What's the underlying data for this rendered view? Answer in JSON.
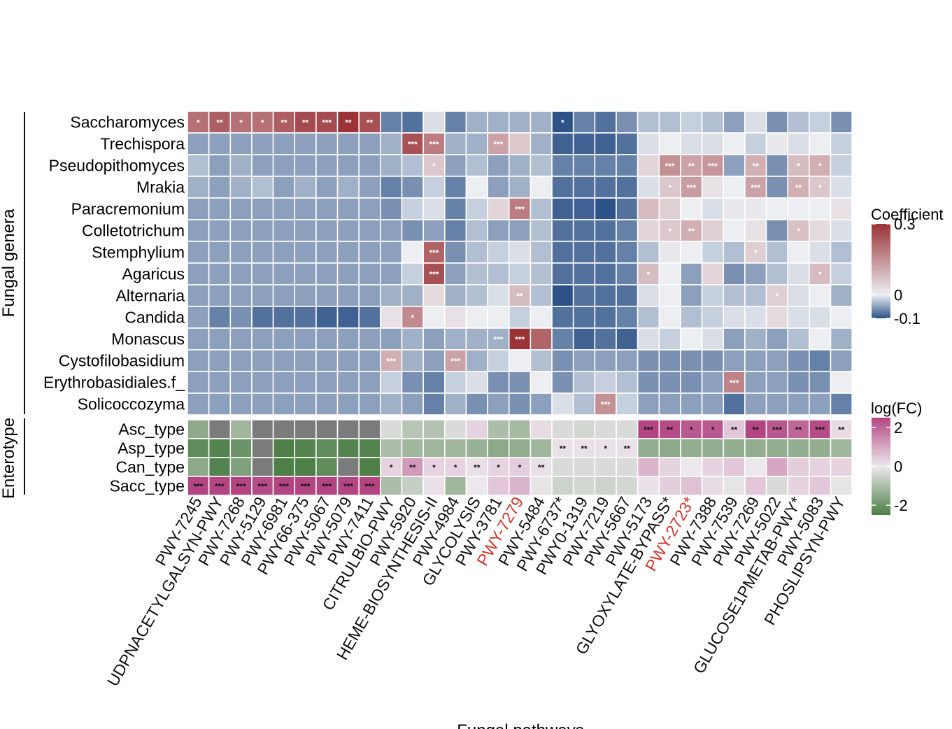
{
  "chart_data": {
    "type": "heatmap",
    "y_axis_label_top": "Fungal genera",
    "y_axis_label_bottom": "Enterotype",
    "x_axis_label": "Fungal pathways",
    "columns": [
      "PWY-7245",
      "UDPNACETYLGALSYN-PWY",
      "PWY-7268",
      "PWY-5129",
      "PWY-6981",
      "PWY66-375",
      "PWY-5067",
      "PWY-5079",
      "PWY-7411",
      "CITRULBIO-PWY",
      "PWY-5920",
      "HEME-BIOSYNTHESIS-II",
      "PWY-4984",
      "GLYCOLYSIS",
      "PWY-3781",
      "PWY-7279",
      "PWY-5484",
      "PWY-6737*",
      "PWY0-1319",
      "PWY-7219",
      "PWY-5667",
      "PWY-5173",
      "GLYOXYLATE-BYPASS*",
      "PWY-2723*",
      "PWY-7388",
      "PWY-7539",
      "PWY-7269",
      "PWY-5022",
      "GLUCOSE1PMETAB-PWY*",
      "PWY-5083",
      "PHOSLIPSYN-PWY"
    ],
    "highlighted_columns": [
      "PWY-7279",
      "PWY-2723*"
    ],
    "highlight_color": "#d2342a",
    "genera": [
      "Saccharomyces",
      "Trechispora",
      "Pseudopithomyces",
      "Mrakia",
      "Paracremonium",
      "Colletotrichum",
      "Stemphylium",
      "Agaricus",
      "Alternaria",
      "Candida",
      "Monascus",
      "Cystofilobasidium",
      "Erythrobasidiales.f_",
      "Solicoccozyma"
    ],
    "coefficient": [
      [
        0.2,
        0.23,
        0.2,
        0.2,
        0.23,
        0.26,
        0.26,
        0.3,
        0.25,
        -0.07,
        -0.08,
        -0.01,
        -0.07,
        -0.04,
        -0.04,
        -0.04,
        -0.04,
        -0.1,
        -0.07,
        -0.08,
        -0.06,
        -0.03,
        -0.03,
        -0.02,
        -0.03,
        -0.05,
        -0.01,
        -0.06,
        -0.03,
        -0.02,
        -0.06
      ],
      [
        -0.05,
        -0.05,
        -0.05,
        -0.05,
        -0.05,
        -0.05,
        -0.05,
        -0.05,
        -0.05,
        -0.04,
        0.25,
        0.18,
        -0.04,
        -0.04,
        0.12,
        0.06,
        -0.04,
        -0.09,
        -0.09,
        -0.09,
        -0.08,
        -0.01,
        0.0,
        -0.01,
        -0.01,
        0.0,
        -0.02,
        0.01,
        -0.01,
        0.0,
        -0.02
      ],
      [
        -0.03,
        -0.05,
        -0.04,
        -0.05,
        -0.05,
        -0.05,
        -0.05,
        -0.05,
        -0.05,
        -0.04,
        -0.03,
        0.06,
        -0.05,
        -0.03,
        -0.05,
        -0.04,
        -0.03,
        -0.07,
        -0.07,
        -0.07,
        -0.07,
        0.04,
        0.15,
        0.12,
        0.14,
        -0.05,
        0.1,
        -0.06,
        0.08,
        0.1,
        -0.02
      ],
      [
        -0.04,
        -0.05,
        -0.04,
        -0.03,
        -0.05,
        -0.04,
        -0.05,
        -0.04,
        -0.05,
        -0.07,
        -0.06,
        -0.02,
        -0.07,
        0.0,
        -0.05,
        -0.04,
        0.0,
        -0.08,
        -0.08,
        -0.08,
        -0.08,
        -0.01,
        0.06,
        0.13,
        0.02,
        0.0,
        0.12,
        -0.06,
        0.1,
        0.06,
        -0.01
      ],
      [
        -0.05,
        -0.05,
        -0.05,
        -0.05,
        -0.05,
        -0.05,
        -0.05,
        -0.05,
        -0.05,
        -0.06,
        -0.02,
        -0.01,
        -0.07,
        -0.02,
        0.04,
        0.18,
        -0.03,
        -0.09,
        -0.09,
        -0.1,
        -0.08,
        0.08,
        0.05,
        0.0,
        -0.01,
        0.01,
        0.01,
        0.0,
        0.0,
        0.0,
        0.02
      ],
      [
        -0.05,
        -0.05,
        -0.05,
        -0.05,
        -0.05,
        -0.05,
        -0.05,
        -0.05,
        -0.05,
        -0.05,
        -0.06,
        -0.05,
        -0.07,
        -0.03,
        -0.05,
        -0.05,
        -0.03,
        -0.08,
        -0.08,
        -0.08,
        -0.07,
        0.04,
        0.06,
        0.1,
        0.05,
        0.0,
        0.02,
        -0.06,
        0.07,
        0.03,
        -0.01
      ],
      [
        -0.05,
        -0.05,
        -0.05,
        -0.05,
        -0.05,
        -0.05,
        -0.05,
        -0.05,
        -0.05,
        -0.05,
        0.0,
        0.22,
        -0.06,
        -0.03,
        -0.02,
        -0.01,
        -0.03,
        -0.08,
        -0.08,
        -0.08,
        -0.07,
        -0.03,
        0.01,
        0.0,
        -0.02,
        -0.03,
        0.05,
        -0.03,
        0.0,
        -0.01,
        -0.03
      ],
      [
        -0.05,
        -0.05,
        -0.05,
        -0.05,
        -0.05,
        -0.05,
        -0.05,
        -0.05,
        -0.05,
        -0.05,
        -0.02,
        0.25,
        -0.05,
        -0.03,
        -0.03,
        -0.02,
        -0.03,
        -0.08,
        -0.08,
        -0.08,
        -0.07,
        0.08,
        0.0,
        -0.05,
        0.04,
        -0.06,
        -0.05,
        -0.03,
        -0.01,
        0.08,
        -0.02
      ],
      [
        -0.05,
        -0.05,
        -0.05,
        -0.05,
        -0.05,
        -0.05,
        -0.05,
        -0.05,
        -0.05,
        -0.04,
        -0.04,
        0.03,
        -0.04,
        -0.03,
        -0.01,
        0.08,
        -0.03,
        -0.1,
        -0.08,
        -0.08,
        -0.08,
        -0.01,
        0.0,
        -0.05,
        -0.02,
        -0.03,
        -0.03,
        0.05,
        -0.01,
        0.0,
        -0.04
      ],
      [
        -0.05,
        -0.07,
        -0.06,
        -0.08,
        -0.08,
        -0.08,
        -0.09,
        -0.09,
        -0.08,
        0.02,
        0.16,
        0.0,
        0.02,
        0.0,
        0.0,
        -0.02,
        0.0,
        -0.08,
        -0.08,
        -0.08,
        -0.07,
        -0.03,
        0.0,
        -0.03,
        -0.02,
        -0.01,
        -0.01,
        0.03,
        -0.01,
        -0.01,
        0.0
      ],
      [
        -0.05,
        -0.05,
        -0.05,
        -0.05,
        -0.05,
        -0.05,
        -0.05,
        -0.05,
        -0.05,
        -0.05,
        -0.04,
        -0.05,
        -0.04,
        -0.04,
        -0.04,
        0.3,
        0.22,
        -0.07,
        -0.09,
        -0.08,
        -0.09,
        -0.01,
        -0.02,
        0.0,
        -0.01,
        -0.05,
        -0.04,
        -0.05,
        -0.03,
        0.0,
        -0.04
      ],
      [
        -0.05,
        -0.05,
        -0.05,
        -0.05,
        -0.05,
        -0.05,
        -0.05,
        -0.05,
        -0.05,
        0.1,
        -0.04,
        -0.05,
        0.12,
        -0.04,
        -0.02,
        0.0,
        -0.03,
        -0.06,
        -0.05,
        -0.05,
        -0.05,
        -0.06,
        -0.06,
        -0.06,
        -0.06,
        -0.05,
        -0.05,
        -0.05,
        -0.06,
        -0.07,
        -0.05
      ],
      [
        -0.05,
        -0.05,
        -0.05,
        -0.05,
        -0.05,
        -0.05,
        -0.05,
        -0.05,
        -0.05,
        -0.02,
        -0.06,
        -0.07,
        -0.02,
        -0.01,
        -0.06,
        -0.06,
        0.0,
        -0.06,
        -0.03,
        -0.02,
        -0.03,
        -0.06,
        -0.06,
        -0.06,
        -0.05,
        0.17,
        -0.05,
        -0.05,
        -0.06,
        -0.06,
        0.0
      ],
      [
        -0.05,
        -0.05,
        -0.05,
        -0.05,
        -0.05,
        -0.05,
        -0.05,
        -0.05,
        -0.05,
        -0.04,
        -0.05,
        -0.07,
        -0.04,
        -0.06,
        -0.05,
        -0.06,
        -0.05,
        -0.01,
        -0.03,
        0.15,
        -0.02,
        -0.05,
        -0.05,
        -0.05,
        -0.05,
        -0.08,
        -0.05,
        -0.05,
        -0.05,
        -0.05,
        -0.07
      ]
    ],
    "coefficient_significance": [
      [
        "*",
        "**",
        "*",
        "*",
        "**",
        "**",
        "***",
        "**",
        "**",
        "",
        "",
        "",
        "",
        "",
        "",
        "",
        "",
        "*",
        "",
        "",
        "",
        "",
        "",
        "",
        "",
        "",
        "",
        "",
        "",
        "",
        ""
      ],
      [
        "",
        "",
        "",
        "",
        "",
        "",
        "",
        "",
        "",
        "",
        "***",
        "***",
        "",
        "",
        "***",
        "",
        "",
        "",
        "",
        "",
        "",
        "",
        "",
        "",
        "",
        "",
        "",
        "",
        "",
        "",
        ""
      ],
      [
        "",
        "",
        "",
        "",
        "",
        "",
        "",
        "",
        "",
        "",
        "",
        "*",
        "",
        "",
        "",
        "",
        "",
        "",
        "",
        "",
        "",
        "",
        "***",
        "**",
        "***",
        "",
        "**",
        "",
        "*",
        "*",
        ""
      ],
      [
        "",
        "",
        "",
        "",
        "",
        "",
        "",
        "",
        "",
        "",
        "",
        "",
        "",
        "",
        "",
        "",
        "",
        "",
        "",
        "",
        "",
        "",
        "*",
        "***",
        "",
        "",
        "***",
        "",
        "**",
        "*",
        ""
      ],
      [
        "",
        "",
        "",
        "",
        "",
        "",
        "",
        "",
        "",
        "",
        "",
        "",
        "",
        "",
        "",
        "***",
        "",
        "",
        "",
        "",
        "",
        "",
        "",
        "",
        "",
        "",
        "",
        "",
        "",
        "",
        ""
      ],
      [
        "",
        "",
        "",
        "",
        "",
        "",
        "",
        "",
        "",
        "",
        "",
        "",
        "",
        "",
        "",
        "",
        "",
        "",
        "",
        "",
        "",
        "",
        "*",
        "**",
        "",
        "",
        "",
        "",
        "*",
        "",
        ""
      ],
      [
        "",
        "",
        "",
        "",
        "",
        "",
        "",
        "",
        "",
        "",
        "",
        "***",
        "",
        "",
        "",
        "",
        "",
        "",
        "",
        "",
        "",
        "",
        "",
        "",
        "",
        "",
        "*",
        "",
        "",
        "",
        ""
      ],
      [
        "",
        "",
        "",
        "",
        "",
        "",
        "",
        "",
        "",
        "",
        "",
        "***",
        "",
        "",
        "",
        "",
        "",
        "",
        "",
        "",
        "",
        "*",
        "",
        "",
        "",
        "",
        "",
        "",
        "",
        "*",
        ""
      ],
      [
        "",
        "",
        "",
        "",
        "",
        "",
        "",
        "",
        "",
        "",
        "",
        "",
        "",
        "",
        "",
        "**",
        "",
        "",
        "",
        "",
        "",
        "",
        "",
        "",
        "",
        "",
        "",
        "*",
        "",
        "",
        ""
      ],
      [
        "",
        "",
        "",
        "",
        "",
        "",
        "",
        "",
        "",
        "",
        "*",
        "",
        "",
        "",
        "",
        "",
        "",
        "",
        "",
        "",
        "",
        "",
        "",
        "",
        "",
        "",
        "",
        "",
        "",
        "",
        ""
      ],
      [
        "",
        "",
        "",
        "",
        "",
        "",
        "",
        "",
        "",
        "",
        "",
        "",
        "",
        "",
        "***",
        "***",
        "",
        "",
        "",
        "",
        "",
        "",
        "",
        "",
        "",
        "",
        "",
        "",
        "",
        "",
        ""
      ],
      [
        "",
        "",
        "",
        "",
        "",
        "",
        "",
        "",
        "",
        "***",
        "",
        "",
        "***",
        "",
        "",
        "",
        "",
        "",
        "",
        "",
        "",
        "",
        "",
        "",
        "",
        "",
        "",
        "",
        "",
        "",
        ""
      ],
      [
        "",
        "",
        "",
        "",
        "",
        "",
        "",
        "",
        "",
        "",
        "",
        "",
        "",
        "",
        "",
        "",
        "",
        "",
        "",
        "",
        "",
        "",
        "",
        "",
        "",
        "***",
        "",
        "",
        "",
        "",
        ""
      ],
      [
        "",
        "",
        "",
        "",
        "",
        "",
        "",
        "",
        "",
        "",
        "",
        "",
        "",
        "",
        "",
        "",
        "",
        "",
        "",
        "***",
        "",
        "",
        "",
        "",
        "",
        "",
        "",
        "",
        "",
        "",
        ""
      ]
    ],
    "enterotypes": [
      "Asc_type",
      "Asp_type",
      "Can_type",
      "Sacc_type"
    ],
    "logfc": [
      [
        -1.5,
        null,
        -1.2,
        null,
        null,
        null,
        null,
        null,
        null,
        -0.3,
        -0.8,
        -0.9,
        -0.3,
        0.3,
        -1.0,
        -1.1,
        0.2,
        -0.3,
        -0.4,
        -0.3,
        -0.3,
        2.5,
        2.4,
        2.2,
        2.2,
        0.5,
        2.5,
        2.2,
        2.0,
        2.4,
        0.2
      ],
      [
        -2.2,
        -2.4,
        -2.0,
        null,
        -2.5,
        -2.4,
        -2.2,
        -2.4,
        -2.4,
        -1.0,
        -1.2,
        -1.2,
        -1.2,
        -1.3,
        -1.5,
        -1.4,
        -1.2,
        0.1,
        0.1,
        0.1,
        0.1,
        -1.4,
        -1.5,
        -1.4,
        -1.4,
        -1.4,
        -1.4,
        -1.4,
        -1.4,
        -1.4,
        -1.2
      ],
      [
        -1.5,
        -2.4,
        -1.7,
        null,
        -2.5,
        -2.5,
        -2.2,
        null,
        -2.5,
        0.3,
        1.2,
        0.3,
        0.3,
        0.1,
        0.3,
        0.4,
        0.1,
        -0.3,
        -0.3,
        -0.3,
        -0.3,
        0.8,
        0.3,
        0.0,
        0.3,
        0.5,
        0.0,
        1.0,
        0.4,
        0.3,
        0.3
      ],
      [
        2.5,
        2.5,
        2.5,
        2.4,
        2.5,
        2.5,
        2.5,
        2.5,
        2.5,
        -1.0,
        -0.6,
        0.1,
        -1.2,
        0.0,
        0.5,
        0.8,
        -0.1,
        -0.5,
        -0.4,
        -0.5,
        -0.4,
        0.1,
        0.4,
        0.6,
        0.2,
        -0.1,
        0.5,
        -0.3,
        0.3,
        0.5,
        -0.1
      ]
    ],
    "logfc_significance": [
      [
        "",
        "",
        "",
        "",
        "",
        "",
        "",
        "",
        "",
        "",
        "",
        "",
        "",
        "",
        "",
        "",
        "",
        "",
        "",
        "",
        "",
        "***",
        "**",
        "*",
        "*",
        "**",
        "**",
        "***",
        "**",
        "***",
        "**"
      ],
      [
        "",
        "",
        "",
        "",
        "",
        "",
        "",
        "",
        "",
        "",
        "",
        "",
        "",
        "",
        "",
        "",
        "",
        "**",
        "**",
        "*",
        "**",
        "",
        "",
        "",
        "",
        "",
        "",
        "",
        "",
        "",
        ""
      ],
      [
        "",
        "",
        "",
        "",
        "",
        "",
        "",
        "",
        "",
        "*",
        "**",
        "*",
        "*",
        "**",
        "*",
        "*",
        "**",
        "",
        "",
        "",
        "",
        "",
        "",
        "",
        "",
        "",
        "",
        "",
        "",
        "",
        ""
      ],
      [
        "***",
        "***",
        "***",
        "***",
        "***",
        "***",
        "***",
        "***",
        "***",
        "",
        "",
        "",
        "",
        "",
        "",
        "",
        "",
        "",
        "",
        "",
        "",
        "",
        "",
        "",
        "",
        "",
        "",
        "",
        "",
        "",
        ""
      ]
    ],
    "legend_coefficient": {
      "title": "Coefficient",
      "range": [
        -0.1,
        0.3
      ],
      "ticks": [
        "0.3",
        "0",
        "-0.1"
      ],
      "tick_values": [
        0.3,
        0,
        -0.1
      ],
      "colors": {
        "high": "#9a3236",
        "mid": "#eceef2",
        "low": "#2c5287"
      }
    },
    "legend_logfc": {
      "title": "log(FC)",
      "range": [
        -2.5,
        2.5
      ],
      "ticks": [
        "2",
        "0",
        "-2"
      ],
      "tick_values": [
        2,
        0,
        -2
      ],
      "colors": {
        "high": "#b34583",
        "mid": "#ece8ec",
        "low": "#4d7f47"
      },
      "na_color": "#7b7b7b"
    }
  }
}
